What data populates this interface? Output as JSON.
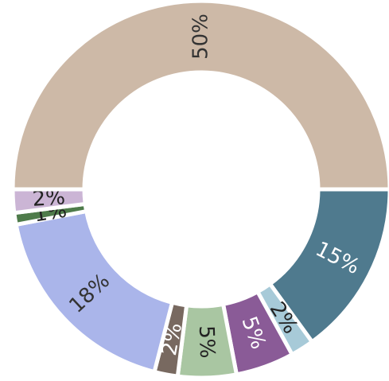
{
  "chart_data": {
    "type": "donut",
    "values": [
      15,
      2,
      5,
      5,
      2,
      18,
      1,
      2,
      50
    ],
    "value_labels": [
      "15%",
      "2%",
      "5%",
      "5%",
      "2%",
      "18%",
      "1%",
      "2%",
      "50%"
    ],
    "colors": [
      "#4f7a8e",
      "#a7cad8",
      "#8a5b97",
      "#a9c6a2",
      "#786960",
      "#aab5ea",
      "#4e7b4a",
      "#cbb5d5",
      "#cdb9a7"
    ],
    "label_colors": [
      "#ffffff",
      "#222222",
      "#ffffff",
      "#222222",
      "#ffffff",
      "#333333",
      "#222222",
      "#222222",
      "#333333"
    ]
  }
}
